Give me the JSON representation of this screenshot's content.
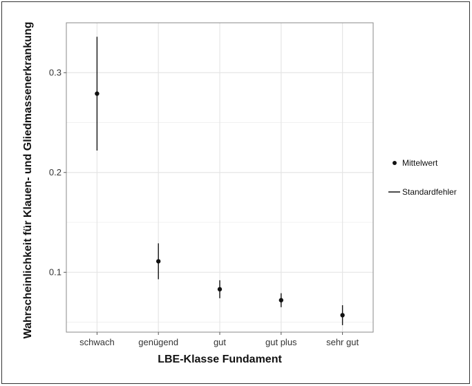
{
  "chart_data": {
    "type": "scatter",
    "title": "",
    "xlabel": "LBE-Klasse Fundament",
    "ylabel": "Wahrscheinlichkeit für Klauen- und Gliedmassenerkrankung",
    "categories": [
      "schwach",
      "genügend",
      "gut",
      "gut plus",
      "sehr gut"
    ],
    "series": [
      {
        "name": "Mittelwert",
        "values": [
          0.279,
          0.111,
          0.083,
          0.072,
          0.057
        ]
      }
    ],
    "error_bars": {
      "name": "Standardfehler",
      "lower": [
        0.222,
        0.093,
        0.074,
        0.065,
        0.047
      ],
      "upper": [
        0.336,
        0.129,
        0.092,
        0.079,
        0.067
      ]
    },
    "ylim": [
      0.04,
      0.35
    ],
    "y_ticks": [
      0.1,
      0.2,
      0.3
    ],
    "y_tick_labels": [
      "0.1",
      "0.2",
      "0.3"
    ],
    "grid": true,
    "legend_position": "right",
    "colors": {
      "point": "#111111",
      "errorbar": "#111111",
      "grid": "#e5e5e5",
      "panel_border": "#8a8a8a"
    }
  }
}
